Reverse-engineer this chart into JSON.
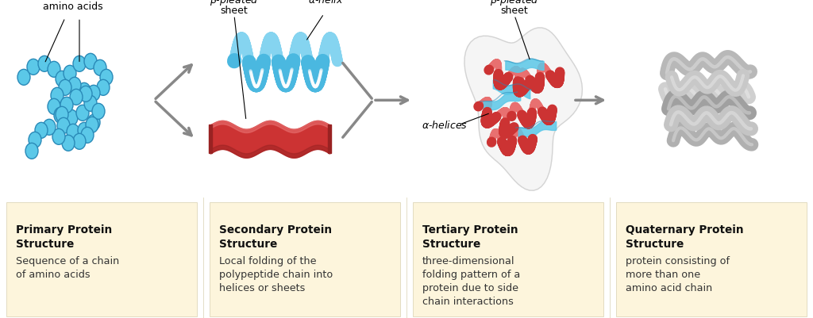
{
  "bg_color": "#ffffff",
  "panel_bg": "#fdf5dc",
  "panel_border": "#d8d0b0",
  "text_color": "#333333",
  "bold_color": "#111111",
  "panels": [
    {
      "title": "Primary Protein\nStructure",
      "body": "Sequence of a chain\nof amino acids"
    },
    {
      "title": "Secondary Protein\nStructure",
      "body": "Local folding of the\npolypeptide chain into\nhelices or sheets"
    },
    {
      "title": "Tertiary Protein\nStructure",
      "body": "three-dimensional\nfolding pattern of a\nprotein due to side\nchain interactions"
    },
    {
      "title": "Quaternary Protein\nStructure",
      "body": "protein consisting of\nmore than one\namino acid chain"
    }
  ],
  "arrow_color": "#888888",
  "helix_color_main": "#4ab8e0",
  "helix_color_light": "#85d4f0",
  "helix_color_dark": "#2a8ab8",
  "sheet_color_main": "#cc3333",
  "sheet_color_light": "#e87070",
  "sheet_color_dark": "#992222",
  "bead_color": "#5bc8e8",
  "bead_edge": "#2a8ab8",
  "gray_light": "#cccccc",
  "gray_mid": "#aaaaaa",
  "gray_dark": "#888888"
}
